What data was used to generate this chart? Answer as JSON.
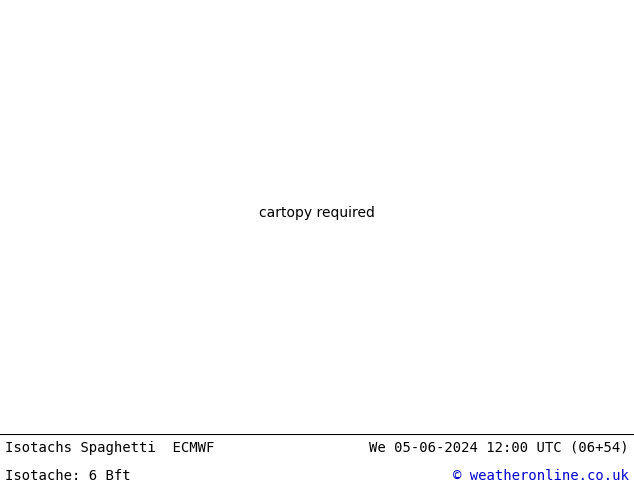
{
  "title_left": "Isotachs Spaghetti  ECMWF",
  "title_right": "We 05-06-2024 12:00 UTC (06+54)",
  "subtitle_left": "Isotache: 6 Bft",
  "subtitle_right": "© weatheronline.co.uk",
  "bg_color": "#ffffff",
  "ocean_color": "#ebebeb",
  "land_color": "#c8f0a0",
  "border_color": "#555555",
  "text_color_black": "#000000",
  "text_color_blue": "#0000cd",
  "fig_width": 6.34,
  "fig_height": 4.9,
  "dpi": 100,
  "font_size": 10,
  "map_extent": [
    -175,
    -40,
    10,
    80
  ],
  "central_longitude": -100,
  "central_latitude": 45,
  "spaghetti_colors": [
    "#ff0000",
    "#00ccff",
    "#ff00ff",
    "#ffaa00",
    "#00ff00",
    "#0000ff",
    "#ff6600",
    "#cc00cc",
    "#00cccc",
    "#ffff00",
    "#ff4488",
    "#44ff88",
    "#8844ff",
    "#ff8844",
    "#44ffff",
    "#ff0088",
    "#00ff88",
    "#8800ff",
    "#ffcc00",
    "#00ffcc"
  ]
}
